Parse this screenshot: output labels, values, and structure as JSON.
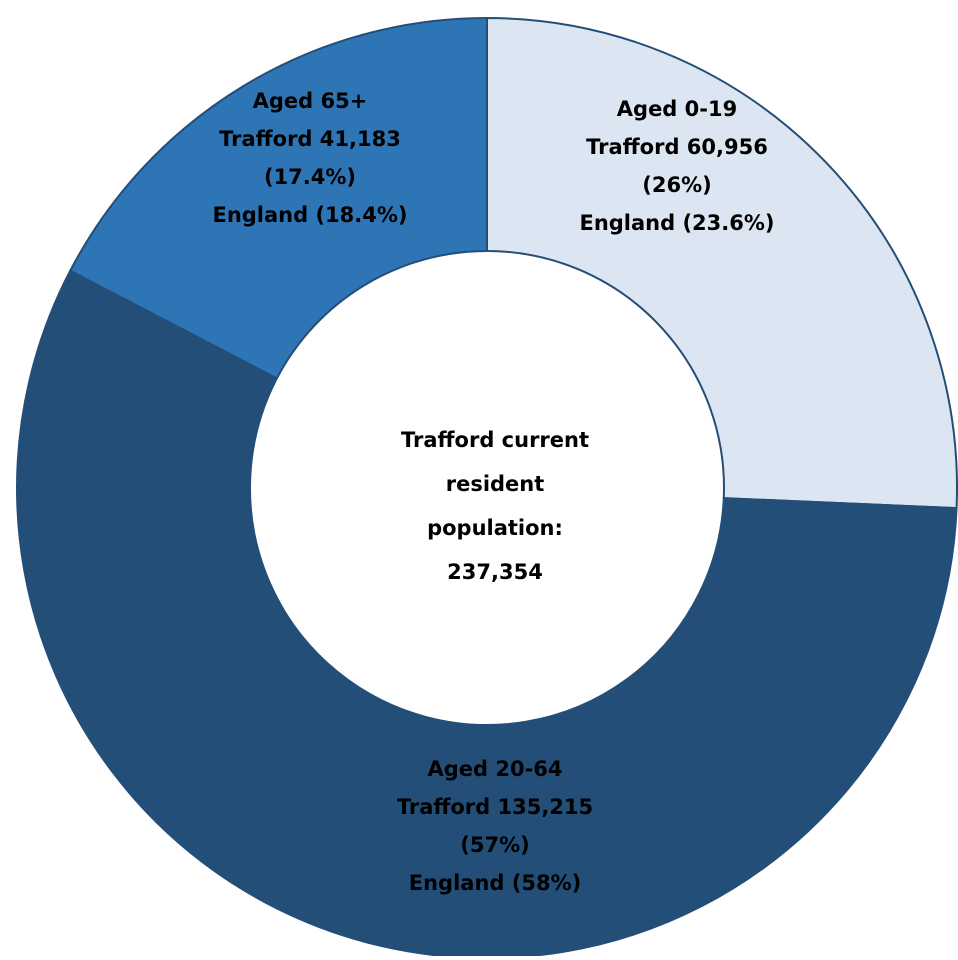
{
  "chart_data": {
    "type": "donut",
    "categories": [
      "Aged 0-19",
      "Aged 20-64",
      "Aged 65+"
    ],
    "values": [
      60956,
      135215,
      41183
    ],
    "value_labels": [
      "Trafford 60,956",
      "Trafford 135,215",
      "Trafford 41,183"
    ],
    "percent_labels": [
      "(26%)",
      "(57%)",
      "(17.4%)"
    ],
    "england_labels": [
      "England (23.6%)",
      "England (58%)",
      "England (18.4%)"
    ],
    "colors": [
      "#dce6f2",
      "#234e78",
      "#2e75b6"
    ],
    "center_text": [
      "Trafford current",
      "resident",
      "population:"
    ],
    "total": {
      "value": 237354,
      "label": "237,354"
    }
  }
}
